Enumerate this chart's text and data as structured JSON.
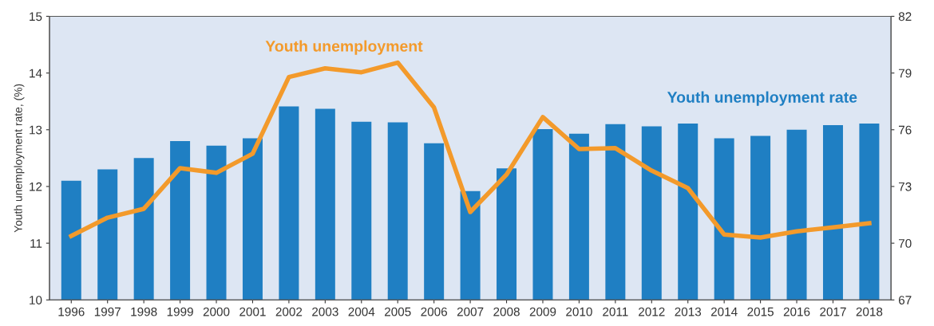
{
  "chart_data": {
    "type": "bar",
    "ylabel": "Youth unemployment rate, (%)",
    "categories": [
      "1996",
      "1997",
      "1998",
      "1999",
      "2000",
      "2001",
      "2002",
      "2003",
      "2004",
      "2005",
      "2006",
      "2007",
      "2008",
      "2009",
      "2010",
      "2011",
      "2012",
      "2013",
      "2014",
      "2015",
      "2016",
      "2017",
      "2018"
    ],
    "series": [
      {
        "name": "Youth unemployment rate",
        "color": "#1f7fc3",
        "values": [
          12.1,
          12.3,
          12.5,
          12.8,
          12.72,
          12.85,
          13.41,
          13.37,
          13.14,
          13.13,
          12.76,
          11.92,
          12.32,
          13.01,
          12.93,
          13.1,
          13.06,
          13.11,
          12.85,
          12.89,
          13.0,
          13.08,
          13.11
        ]
      },
      {
        "name": "Youth unemployment",
        "type": "line",
        "axis": "y2",
        "color": "#f39a2b",
        "values": [
          70.38,
          71.35,
          71.82,
          73.97,
          73.72,
          74.73,
          78.79,
          79.25,
          79.04,
          79.55,
          77.18,
          71.65,
          73.63,
          76.67,
          74.98,
          75.03,
          73.84,
          72.91,
          70.46,
          70.3,
          70.63,
          70.84,
          71.06
        ]
      }
    ],
    "ylim": [
      10,
      15
    ],
    "yticks": [
      10,
      11,
      12,
      13,
      14,
      15
    ],
    "y2lim": [
      67,
      82
    ],
    "y2ticks": [
      67,
      70,
      73,
      76,
      79,
      82
    ],
    "grid": false,
    "legend": false
  }
}
